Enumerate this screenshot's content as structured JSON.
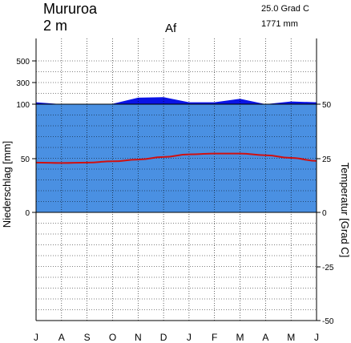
{
  "header": {
    "station": "Mururoa",
    "elevation": "2 m",
    "climate_class": "Af",
    "mean_temp": "25.0 Grad C",
    "annual_precip": "1771 mm"
  },
  "chart_data": {
    "type": "line",
    "months": [
      "J",
      "A",
      "S",
      "O",
      "N",
      "D",
      "J",
      "F",
      "M",
      "A",
      "M",
      "J"
    ],
    "precip_label": "Niederschlag [mm]",
    "temp_label": "Temperatur [Grad C]",
    "precip_ticks": [
      "100",
      "300",
      "500"
    ],
    "precip_ticks_linear": [
      "0",
      "50"
    ],
    "temp_ticks": [
      "50",
      "25",
      "0",
      "-25",
      "-50"
    ],
    "precipitation_mm": [
      118,
      100,
      100,
      104,
      160,
      165,
      118,
      118,
      150,
      100,
      125,
      118
    ],
    "temperature_c": [
      23.0,
      22.8,
      23.0,
      23.6,
      24.4,
      25.6,
      26.8,
      27.2,
      27.2,
      26.4,
      25.2,
      23.8
    ],
    "colors": {
      "humid": "#4a90e2",
      "excess": "#0a14e6",
      "temperature": "#d01010"
    },
    "grid": true
  }
}
